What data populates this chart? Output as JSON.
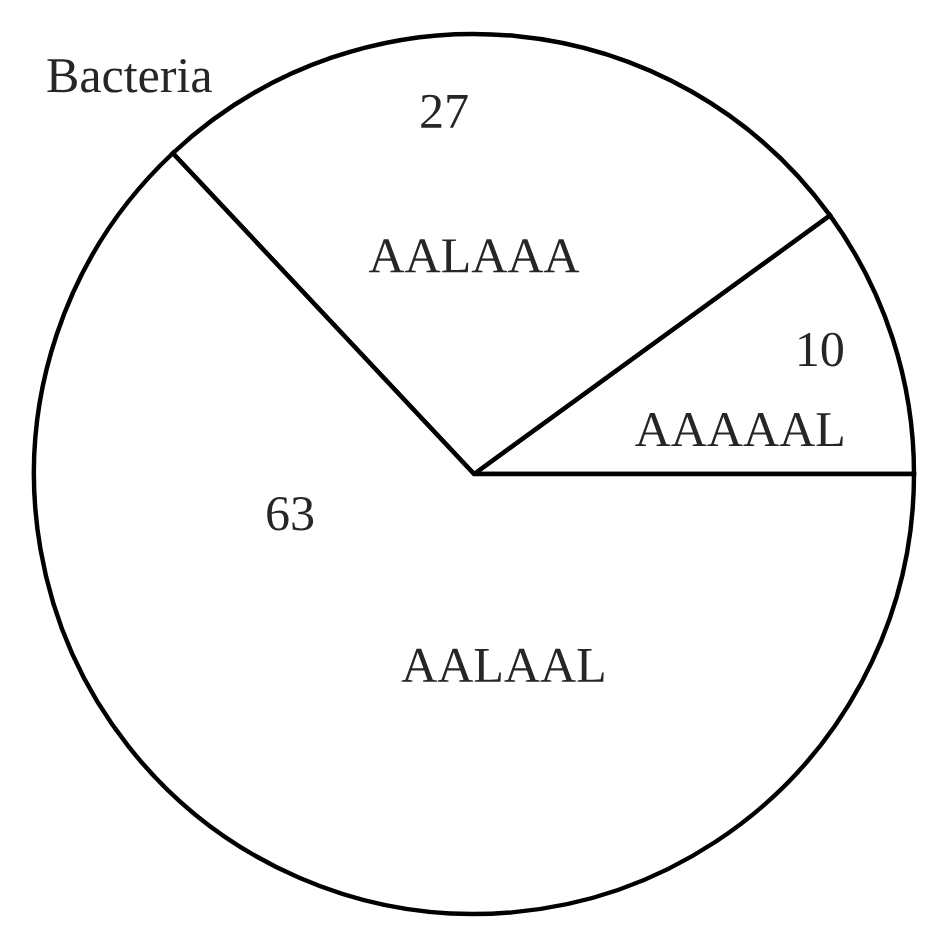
{
  "chart_data": {
    "type": "pie",
    "title": "Bacteria",
    "categories": [
      "AAAAAL",
      "AALAAA",
      "AALAAL"
    ],
    "values": [
      10,
      27,
      63
    ],
    "colors": [
      "#ffffff",
      "#ffffff",
      "#ffffff"
    ],
    "data_labels": true,
    "legend": false
  }
}
